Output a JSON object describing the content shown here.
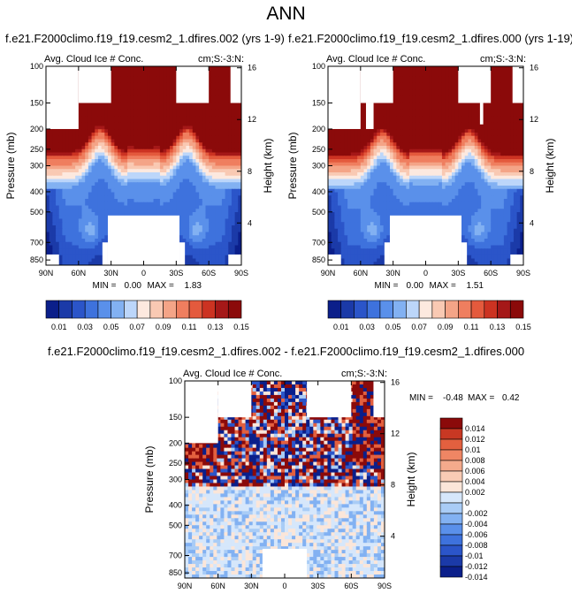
{
  "main_title": "ANN",
  "colors": {
    "dark_red": "#8b0a0a",
    "white": "#ffffff",
    "abs_scale": [
      "#0b1f8a",
      "#1b3aa8",
      "#2b55c9",
      "#3e72dd",
      "#5a90ea",
      "#82b1f2",
      "#bcd6fa",
      "#fde9df",
      "#f9c9b3",
      "#f4a487",
      "#ef7e5f",
      "#e45a3d",
      "#cc3322",
      "#a51818",
      "#8b0a0a"
    ],
    "diff_scale": [
      "#0b1f8a",
      "#1b3aa8",
      "#2b55c9",
      "#3e72dd",
      "#5a90ea",
      "#82b1f2",
      "#a9ccf6",
      "#d6e7fb",
      "#fbe6d9",
      "#f9cbb4",
      "#f4aa8c",
      "#ef8664",
      "#e3603f",
      "#c83823",
      "#8b0a0a"
    ]
  },
  "chart_data": [
    {
      "id": "left",
      "type": "heatmap",
      "case_title": "f.e21.F2000climo.f19_f19.cesm2_1.dfires.002 (yrs 1-9)",
      "variable": "Avg. Cloud Ice # Conc.",
      "units": "cm;S:-3:N:",
      "ylabel": "Pressure (mb)",
      "ylabel_right": "Height (km)",
      "x_ticks": [
        "90N",
        "60N",
        "30N",
        "0",
        "30S",
        "60S",
        "90S"
      ],
      "x_tick_values": [
        90,
        60,
        30,
        0,
        -30,
        -60,
        -90
      ],
      "p_ticks": [
        100,
        150,
        200,
        250,
        300,
        400,
        500,
        700,
        850
      ],
      "height_ticks": [
        16,
        12,
        8,
        4
      ],
      "ylim": [
        100,
        900
      ],
      "min_label": "MIN =",
      "min": "0.00",
      "max_label": "MAX =",
      "max": "1.83",
      "colorbar_labels": [
        "0.01",
        "0.03",
        "0.05",
        "0.07",
        "0.09",
        "0.11",
        "0.13",
        "0.15"
      ],
      "colorbar_levels": [
        0.01,
        0.02,
        0.03,
        0.04,
        0.05,
        0.06,
        0.07,
        0.08,
        0.09,
        0.1,
        0.11,
        0.12,
        0.13,
        0.14,
        0.15
      ]
    },
    {
      "id": "right",
      "type": "heatmap",
      "case_title": "f.e21.F2000climo.f19_f19.cesm2_1.dfires.000 (yrs 1-19)",
      "variable": "Avg. Cloud Ice # Conc.",
      "units": "cm;S:-3:N:",
      "ylabel": "Pressure (mb)",
      "ylabel_right": "Height (km)",
      "x_ticks": [
        "90N",
        "60N",
        "30N",
        "0",
        "30S",
        "60S",
        "90S"
      ],
      "x_tick_values": [
        90,
        60,
        30,
        0,
        -30,
        -60,
        -90
      ],
      "p_ticks": [
        100,
        150,
        200,
        250,
        300,
        400,
        500,
        700,
        850
      ],
      "height_ticks": [
        16,
        12,
        8,
        4
      ],
      "ylim": [
        100,
        900
      ],
      "min_label": "MIN =",
      "min": "0.00",
      "max_label": "MAX =",
      "max": "1.51",
      "colorbar_labels": [
        "0.01",
        "0.03",
        "0.05",
        "0.07",
        "0.09",
        "0.11",
        "0.13",
        "0.15"
      ],
      "colorbar_levels": [
        0.01,
        0.02,
        0.03,
        0.04,
        0.05,
        0.06,
        0.07,
        0.08,
        0.09,
        0.1,
        0.11,
        0.12,
        0.13,
        0.14,
        0.15
      ]
    },
    {
      "id": "diff",
      "type": "heatmap",
      "case_title": "f.e21.F2000climo.f19_f19.cesm2_1.dfires.002 - f.e21.F2000climo.f19_f19.cesm2_1.dfires.000",
      "variable": "Avg. Cloud Ice # Conc.",
      "units": "cm;S:-3:N:",
      "ylabel": "Pressure (mb)",
      "ylabel_right": "Height (km)",
      "x_ticks": [
        "90N",
        "60N",
        "30N",
        "0",
        "30S",
        "60S",
        "90S"
      ],
      "x_tick_values": [
        90,
        60,
        30,
        0,
        -30,
        -60,
        -90
      ],
      "p_ticks": [
        100,
        150,
        200,
        250,
        300,
        400,
        500,
        700,
        850
      ],
      "height_ticks": [
        16,
        12,
        8,
        4
      ],
      "ylim": [
        100,
        900
      ],
      "min_label": "MIN =",
      "min": "-0.48",
      "max_label": "MAX =",
      "max": "0.42",
      "colorbar_labels": [
        "0.014",
        "0.012",
        "0.01",
        "0.008",
        "0.006",
        "0.004",
        "0.002",
        "0",
        "-0.002",
        "-0.004",
        "-0.006",
        "-0.008",
        "-0.01",
        "-0.012",
        "-0.014"
      ]
    }
  ]
}
